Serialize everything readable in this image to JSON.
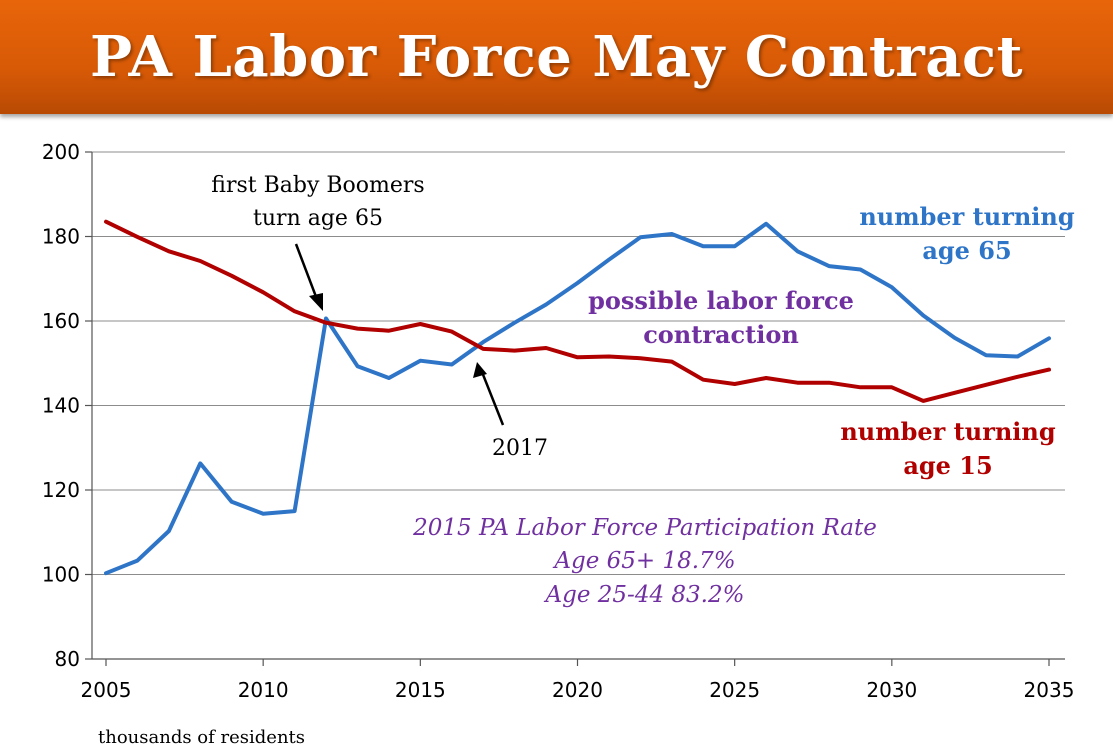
{
  "slide": {
    "title": "PA Labor Force May Contract",
    "footnote": "thousands of residents"
  },
  "colors": {
    "banner": "#e8650a",
    "series_65": "#2e75c8",
    "series_15": "#b00000",
    "annotation": "#7030a0"
  },
  "chart_data": {
    "type": "line",
    "title": "",
    "xlabel": "",
    "ylabel": "",
    "xlim": [
      2005,
      2035
    ],
    "ylim": [
      80,
      200
    ],
    "yticks": [
      80,
      100,
      120,
      140,
      160,
      180,
      200
    ],
    "xticks": [
      2005,
      2010,
      2015,
      2020,
      2025,
      2030,
      2035
    ],
    "grid": "horizontal",
    "x": [
      2005,
      2006,
      2007,
      2008,
      2009,
      2010,
      2011,
      2012,
      2013,
      2014,
      2015,
      2016,
      2017,
      2018,
      2019,
      2020,
      2021,
      2022,
      2023,
      2024,
      2025,
      2026,
      2027,
      2028,
      2029,
      2030,
      2031,
      2032,
      2033,
      2034,
      2035
    ],
    "series": [
      {
        "name": "number turning age 65",
        "color": "#2e75c8",
        "values": [
          100.3,
          103.3,
          110.3,
          126.3,
          117.2,
          114.4,
          115.0,
          160.6,
          149.3,
          146.5,
          150.6,
          149.7,
          155.0,
          159.6,
          163.9,
          169.0,
          174.5,
          179.8,
          180.6,
          177.7,
          177.7,
          183.0,
          176.5,
          173.0,
          172.2,
          168.0,
          161.3,
          156.0,
          151.9,
          151.6,
          155.9
        ]
      },
      {
        "name": "number turning age 15",
        "color": "#b00000",
        "values": [
          183.5,
          179.9,
          176.5,
          174.2,
          170.7,
          166.8,
          162.3,
          159.6,
          158.2,
          157.7,
          159.3,
          157.5,
          153.4,
          153.0,
          153.6,
          151.4,
          151.6,
          151.2,
          150.4,
          146.1,
          145.1,
          146.5,
          145.4,
          145.4,
          144.3,
          144.3,
          141.1,
          143.0,
          144.9,
          146.8,
          148.5
        ]
      }
    ],
    "annotations": {
      "boomers": [
        "first Baby Boomers",
        "turn age 65"
      ],
      "year": "2017",
      "contraction": [
        "possible labor force",
        "contraction"
      ],
      "label_65": [
        "number turning",
        "age 65"
      ],
      "label_15": [
        "number turning",
        "age 15"
      ],
      "rates": [
        "2015 PA Labor Force Participation Rate",
        "Age 65+  18.7%",
        "Age 25-44  83.2%"
      ]
    }
  }
}
